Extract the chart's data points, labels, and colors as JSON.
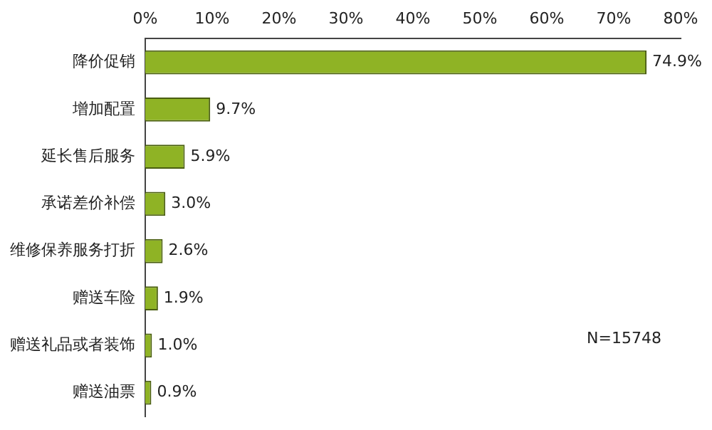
{
  "chart_data": {
    "type": "bar",
    "orientation": "horizontal",
    "categories": [
      "降价促销",
      "增加配置",
      "延长售后服务",
      "承诺差价补偿",
      "维修保养服务打折",
      "赠送车险",
      "赠送礼品或者装饰",
      "赠送油票"
    ],
    "values": [
      74.9,
      9.7,
      5.9,
      3.0,
      2.6,
      1.9,
      1.0,
      0.9
    ],
    "value_labels": [
      "74.9%",
      "9.7%",
      "5.9%",
      "3.0%",
      "2.6%",
      "1.9%",
      "1.0%",
      "0.9%"
    ],
    "color": "#8fb325",
    "xlim": [
      0,
      80
    ],
    "xticks": [
      {
        "value": 0,
        "label": "0%"
      },
      {
        "value": 10,
        "label": "10%"
      },
      {
        "value": 20,
        "label": "20%"
      },
      {
        "value": 30,
        "label": "30%"
      },
      {
        "value": 40,
        "label": "40%"
      },
      {
        "value": 50,
        "label": "50%"
      },
      {
        "value": 60,
        "label": "60%"
      },
      {
        "value": 70,
        "label": "70%"
      },
      {
        "value": 80,
        "label": "80%"
      }
    ],
    "annotations": [
      "N=15748"
    ],
    "grid": false,
    "legend": false
  }
}
